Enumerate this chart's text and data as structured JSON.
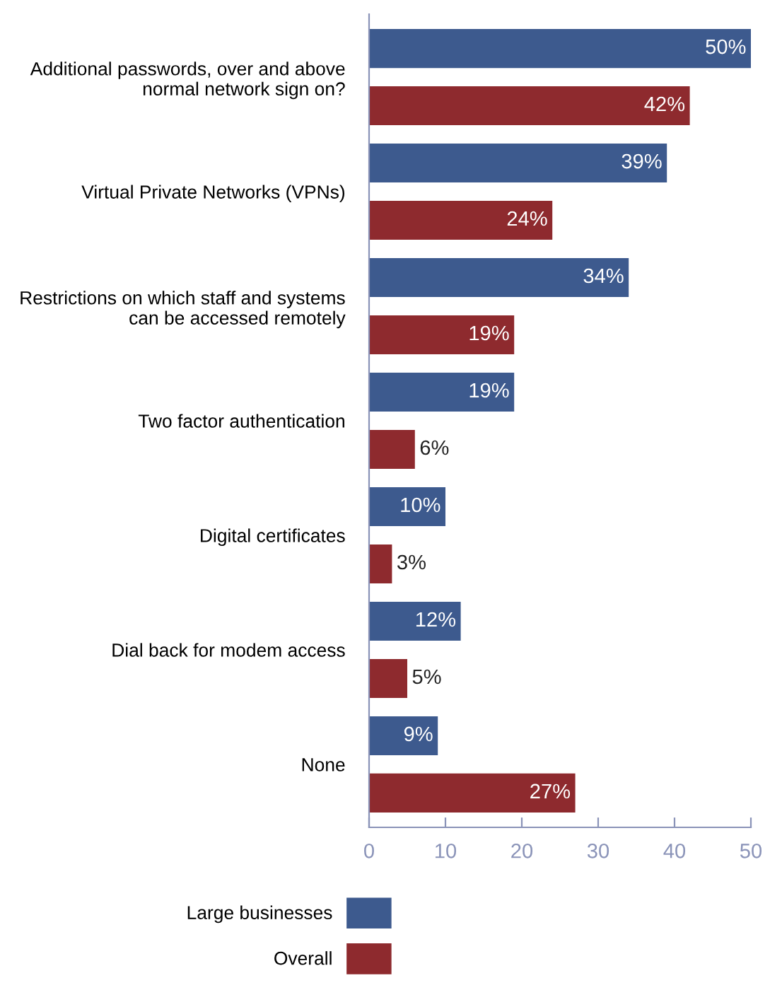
{
  "chart_data": {
    "type": "bar",
    "orientation": "horizontal",
    "categories": [
      "Additional passwords, over and above\nnormal network sign on?",
      "Virtual Private Networks (VPNs)",
      "Restrictions on which staff and systems\ncan be accessed remotely",
      "Two factor authentication",
      "Digital certificates",
      "Dial back for modem access",
      "None"
    ],
    "series": [
      {
        "name": "Large businesses",
        "color": "#3d5a8e",
        "values": [
          50,
          39,
          34,
          19,
          10,
          12,
          9
        ],
        "value_labels": [
          "50%",
          "39%",
          "34%",
          "19%",
          "10%",
          "12%",
          "9%"
        ]
      },
      {
        "name": "Overall",
        "color": "#8e2a2e",
        "values": [
          42,
          24,
          19,
          6,
          3,
          5,
          27
        ],
        "value_labels": [
          "42%",
          "24%",
          "19%",
          "6%",
          "3%",
          "5%",
          "27%"
        ]
      }
    ],
    "xlim": [
      0,
      50
    ],
    "xticks": [
      0,
      10,
      20,
      30,
      40,
      50
    ],
    "grid": false,
    "legend": "bottom"
  }
}
